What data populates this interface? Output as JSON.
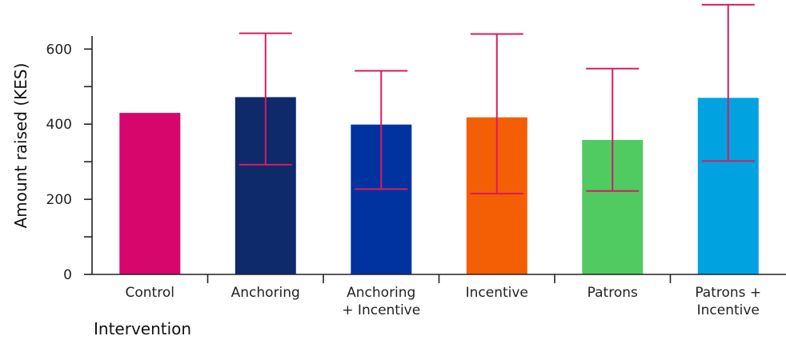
{
  "chart_data": {
    "type": "bar",
    "categories": [
      [
        "Control"
      ],
      [
        "Anchoring"
      ],
      [
        "Anchoring",
        "+ Incentive"
      ],
      [
        "Incentive"
      ],
      [
        "Patrons"
      ],
      [
        "Patrons +",
        "Incentive"
      ]
    ],
    "values": [
      430,
      472,
      399,
      418,
      358,
      470
    ],
    "error_low": [
      null,
      292,
      227,
      215,
      222,
      302
    ],
    "error_high": [
      null,
      642,
      542,
      640,
      548,
      718
    ],
    "colors": [
      "#d6066c",
      "#0f2a6b",
      "#0033a0",
      "#f45e04",
      "#4fcb62",
      "#00a3df"
    ],
    "error_color": "#d81b60",
    "xlabel": "Intervention",
    "ylabel": "Amount raised (KES)",
    "ylim": [
      0,
      660
    ],
    "y_ticks": [
      0,
      200,
      400,
      600
    ],
    "y_tick_labels": [
      "0",
      "200",
      "400",
      "600"
    ],
    "grid": false,
    "legend": "none"
  }
}
